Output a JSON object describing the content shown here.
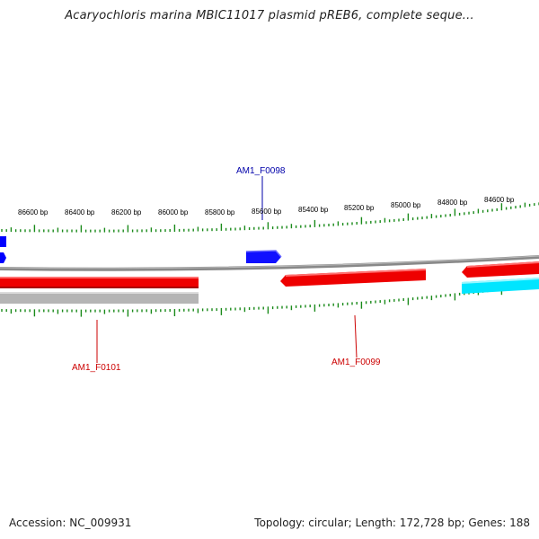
{
  "title": "Acaryochloris marina MBIC11017 plasmid pREB6, complete seque...",
  "colors": {
    "forward_gene": "#0000ff",
    "reverse_gene": "#ff0000",
    "reverse_gene_alt": "#00e5ff",
    "backbone": "#808080",
    "ticks": "#1a8a1a",
    "feature_label_forward": "#0000aa",
    "feature_label_reverse": "#cc0000"
  },
  "ruler": {
    "labels": [
      "86600 bp",
      "86400 bp",
      "86200 bp",
      "86000 bp",
      "85800 bp",
      "85600 bp",
      "85400 bp",
      "85200 bp",
      "85000 bp",
      "84800 bp",
      "84600 bp"
    ]
  },
  "features": [
    {
      "name": "AM1_F0098",
      "strand": "forward"
    },
    {
      "name": "AM1_F0101",
      "strand": "reverse"
    },
    {
      "name": "AM1_F0099",
      "strand": "reverse"
    }
  ],
  "footer": {
    "accession": "Accession: NC_009931",
    "summary": "Topology: circular; Length: 172,728 bp; Genes: 188"
  }
}
